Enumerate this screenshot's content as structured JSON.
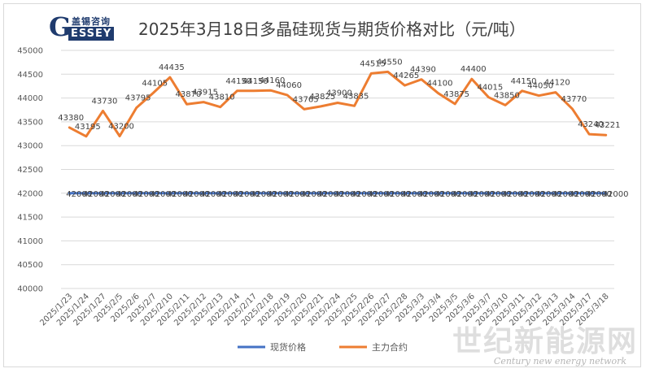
{
  "logo": {
    "cn": "盖锡咨询",
    "g": "G",
    "en": "ESSEY"
  },
  "watermark": {
    "cn": "世纪新能源网",
    "en": "Century new energy network"
  },
  "chart_data": {
    "type": "line",
    "title": "2025年3月18日多晶硅现货与期货价格对比（元/吨）",
    "xlabel": "",
    "ylabel": "",
    "ylim": [
      40000,
      45000
    ],
    "yticks": [
      40000,
      40500,
      41000,
      41500,
      42000,
      42500,
      43000,
      43500,
      44000,
      44500,
      45000
    ],
    "grid": true,
    "legend_position": "bottom",
    "categories": [
      "2025/1/23",
      "2025/1/24",
      "2025/1/27",
      "2025/2/5",
      "2025/2/6",
      "2025/2/7",
      "2025/2/10",
      "2025/2/11",
      "2025/2/12",
      "2025/2/13",
      "2025/2/14",
      "2025/2/17",
      "2025/2/18",
      "2025/2/19",
      "2025/2/20",
      "2025/2/21",
      "2025/2/24",
      "2025/2/25",
      "2025/2/26",
      "2025/2/27",
      "2025/2/28",
      "2025/3/3",
      "2025/3/4",
      "2025/3/5",
      "2025/3/6",
      "2025/3/7",
      "2025/3/10",
      "2025/3/11",
      "2025/3/12",
      "2025/3/13",
      "2025/3/14",
      "2025/3/17",
      "2025/3/18"
    ],
    "series": [
      {
        "name": "现货价格",
        "color": "#4472c4",
        "values": [
          42000,
          42000,
          42000,
          42000,
          42000,
          42000,
          42000,
          42000,
          42000,
          42000,
          42000,
          42000,
          42000,
          42000,
          42000,
          42000,
          42000,
          42000,
          42000,
          42000,
          42000,
          42000,
          42000,
          42000,
          42000,
          42000,
          42000,
          42000,
          42000,
          42000,
          42000,
          42000,
          42000
        ]
      },
      {
        "name": "主力合约",
        "color": "#ed7d31",
        "values": [
          43380,
          43195,
          43730,
          43200,
          43795,
          44105,
          44435,
          43870,
          43915,
          43810,
          44150,
          44150,
          44160,
          44060,
          43765,
          43825,
          43900,
          43835,
          44515,
          44550,
          44265,
          44390,
          44100,
          43875,
          44400,
          44015,
          43850,
          44150,
          44050,
          44120,
          43770,
          43240,
          43221
        ]
      }
    ]
  }
}
